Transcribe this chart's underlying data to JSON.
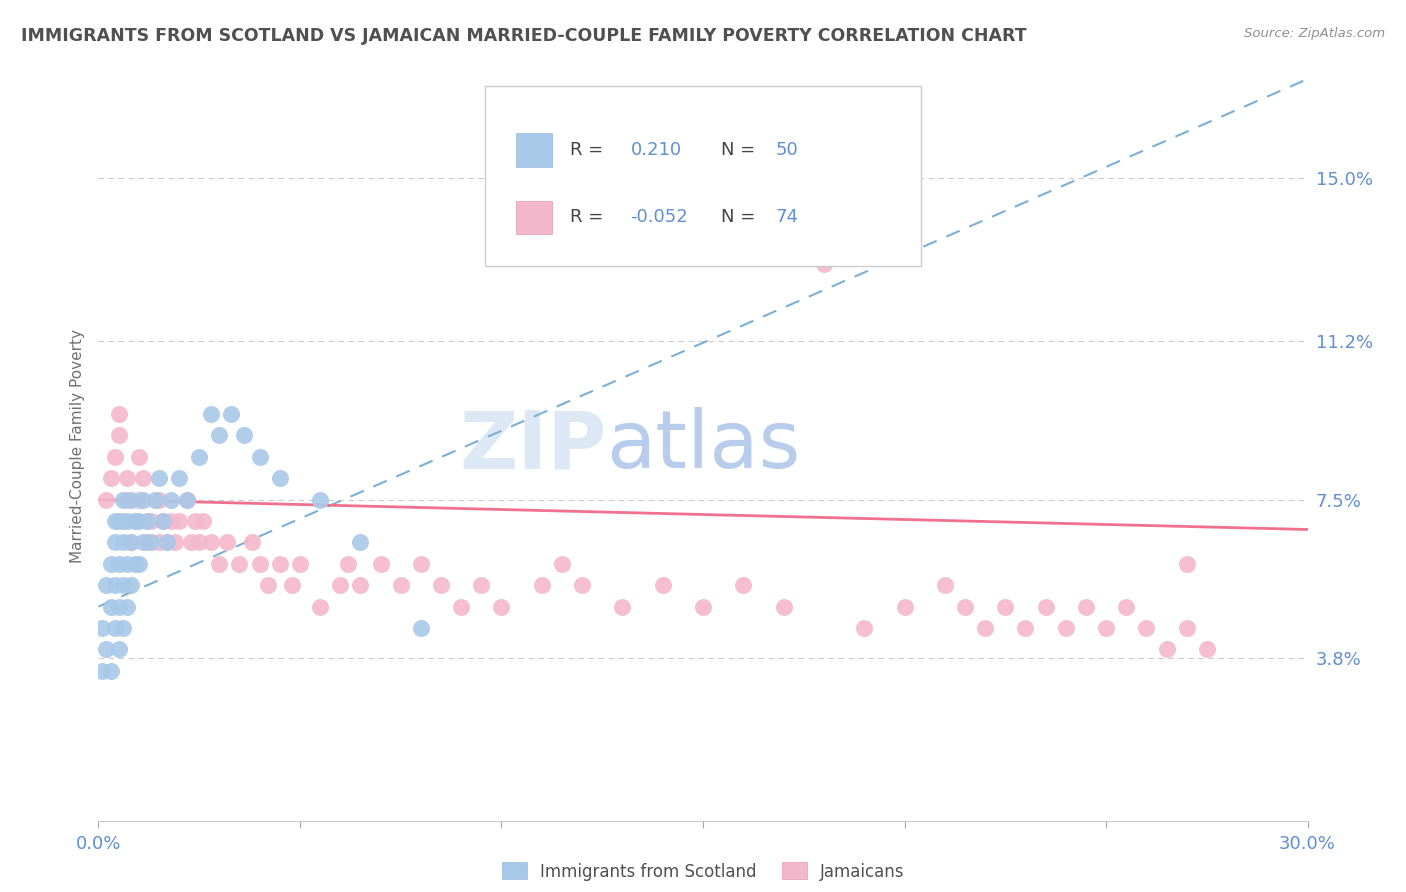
{
  "title": "IMMIGRANTS FROM SCOTLAND VS JAMAICAN MARRIED-COUPLE FAMILY POVERTY CORRELATION CHART",
  "source": "Source: ZipAtlas.com",
  "ylabel": "Married-Couple Family Poverty",
  "xlim": [
    0.0,
    0.3
  ],
  "ylim": [
    0.0,
    0.175
  ],
  "yticks": [
    0.038,
    0.075,
    0.112,
    0.15
  ],
  "ytick_labels": [
    "3.8%",
    "7.5%",
    "11.2%",
    "15.0%"
  ],
  "r_scotland": 0.21,
  "n_scotland": 50,
  "r_jamaican": -0.052,
  "n_jamaican": 74,
  "scotland_color": "#a8c8e8",
  "jamaican_color": "#f4b8cc",
  "scotland_trendline_color": "#7ab0d8",
  "jamaican_trendline_color": "#f07090",
  "background_color": "#ffffff",
  "title_color": "#505050",
  "axis_label_color": "#6090d0",
  "watermark_color": "#d8e4f4",
  "legend_box_color": "#e8e8e8",
  "scotland_x": [
    0.001,
    0.001,
    0.002,
    0.002,
    0.003,
    0.003,
    0.003,
    0.004,
    0.004,
    0.004,
    0.004,
    0.005,
    0.005,
    0.005,
    0.005,
    0.006,
    0.006,
    0.006,
    0.006,
    0.007,
    0.007,
    0.007,
    0.008,
    0.008,
    0.008,
    0.009,
    0.009,
    0.01,
    0.01,
    0.011,
    0.011,
    0.012,
    0.013,
    0.014,
    0.015,
    0.016,
    0.017,
    0.018,
    0.02,
    0.022,
    0.025,
    0.028,
    0.03,
    0.033,
    0.036,
    0.04,
    0.045,
    0.055,
    0.065,
    0.08
  ],
  "scotland_y": [
    0.035,
    0.045,
    0.04,
    0.055,
    0.035,
    0.05,
    0.06,
    0.045,
    0.055,
    0.065,
    0.07,
    0.04,
    0.05,
    0.06,
    0.07,
    0.045,
    0.055,
    0.065,
    0.075,
    0.05,
    0.06,
    0.07,
    0.055,
    0.065,
    0.075,
    0.06,
    0.07,
    0.06,
    0.07,
    0.065,
    0.075,
    0.07,
    0.065,
    0.075,
    0.08,
    0.07,
    0.065,
    0.075,
    0.08,
    0.075,
    0.085,
    0.095,
    0.09,
    0.095,
    0.09,
    0.085,
    0.08,
    0.075,
    0.065,
    0.045
  ],
  "jamaican_x": [
    0.002,
    0.003,
    0.004,
    0.005,
    0.006,
    0.007,
    0.007,
    0.008,
    0.009,
    0.01,
    0.011,
    0.012,
    0.013,
    0.015,
    0.016,
    0.017,
    0.018,
    0.019,
    0.02,
    0.022,
    0.023,
    0.024,
    0.025,
    0.026,
    0.028,
    0.03,
    0.032,
    0.035,
    0.038,
    0.04,
    0.042,
    0.045,
    0.048,
    0.05,
    0.055,
    0.06,
    0.062,
    0.065,
    0.07,
    0.075,
    0.08,
    0.085,
    0.09,
    0.095,
    0.1,
    0.11,
    0.115,
    0.12,
    0.13,
    0.14,
    0.15,
    0.16,
    0.17,
    0.18,
    0.19,
    0.2,
    0.21,
    0.215,
    0.22,
    0.225,
    0.23,
    0.235,
    0.24,
    0.245,
    0.25,
    0.255,
    0.26,
    0.265,
    0.27,
    0.275,
    0.005,
    0.01,
    0.015,
    0.27
  ],
  "jamaican_y": [
    0.075,
    0.08,
    0.085,
    0.09,
    0.07,
    0.075,
    0.08,
    0.065,
    0.07,
    0.075,
    0.08,
    0.065,
    0.07,
    0.075,
    0.07,
    0.065,
    0.07,
    0.065,
    0.07,
    0.075,
    0.065,
    0.07,
    0.065,
    0.07,
    0.065,
    0.06,
    0.065,
    0.06,
    0.065,
    0.06,
    0.055,
    0.06,
    0.055,
    0.06,
    0.05,
    0.055,
    0.06,
    0.055,
    0.06,
    0.055,
    0.06,
    0.055,
    0.05,
    0.055,
    0.05,
    0.055,
    0.06,
    0.055,
    0.05,
    0.055,
    0.05,
    0.055,
    0.05,
    0.13,
    0.045,
    0.05,
    0.055,
    0.05,
    0.045,
    0.05,
    0.045,
    0.05,
    0.045,
    0.05,
    0.045,
    0.05,
    0.045,
    0.04,
    0.045,
    0.04,
    0.095,
    0.085,
    0.065,
    0.06
  ]
}
